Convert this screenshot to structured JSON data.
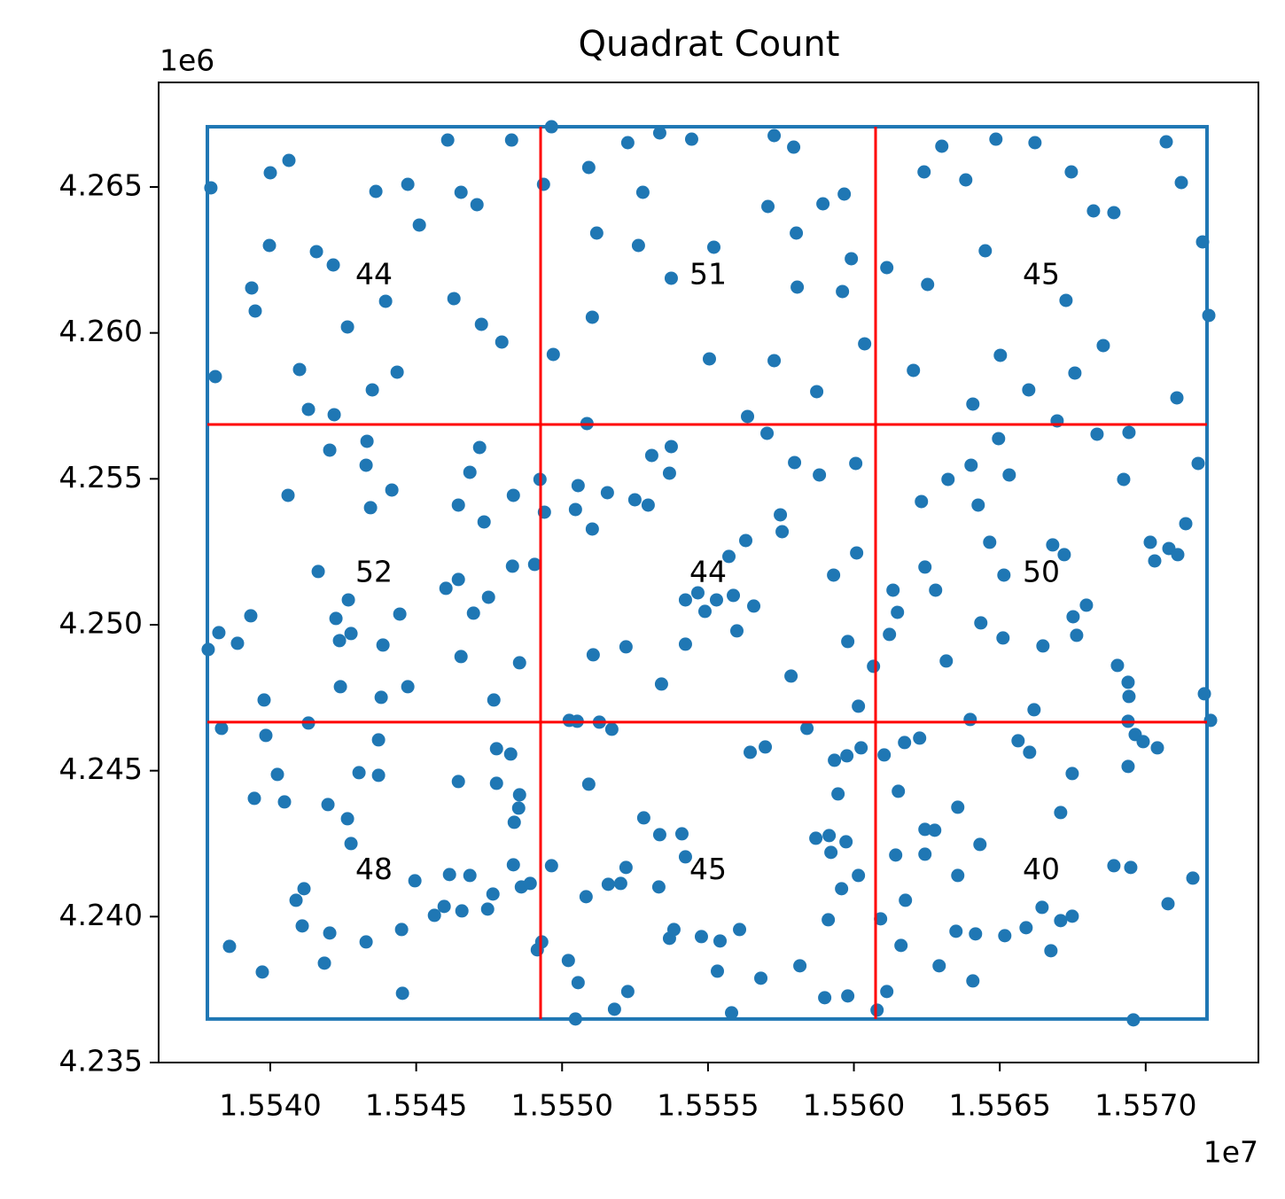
{
  "chart_data": {
    "type": "scatter",
    "title": "Quadrat Count",
    "color": "#1f77b4",
    "xlim": [
      15536173,
      15573863
    ],
    "ylim": [
      4235000,
      4268583
    ],
    "xticks": [
      {
        "value": 15540000,
        "label": "1.5540"
      },
      {
        "value": 15545000,
        "label": "1.5545"
      },
      {
        "value": 15550000,
        "label": "1.5550"
      },
      {
        "value": 15555000,
        "label": "1.5555"
      },
      {
        "value": 15560000,
        "label": "1.5560"
      },
      {
        "value": 15565000,
        "label": "1.5565"
      },
      {
        "value": 15570000,
        "label": "1.5570"
      }
    ],
    "yticks": [
      {
        "value": 4235000,
        "label": "4.235"
      },
      {
        "value": 4240000,
        "label": "4.240"
      },
      {
        "value": 4245000,
        "label": "4.245"
      },
      {
        "value": 4250000,
        "label": "4.250"
      },
      {
        "value": 4255000,
        "label": "4.255"
      },
      {
        "value": 4260000,
        "label": "4.260"
      },
      {
        "value": 4265000,
        "label": "4.265"
      }
    ],
    "x_offset": "1e7",
    "y_offset": "1e6",
    "boundary": {
      "x": [
        15537844,
        15572101
      ],
      "y": [
        4236492,
        4267064
      ],
      "color": "#1f77b4"
    },
    "quadrat_lines": {
      "x": [
        15549263,
        15560743
      ],
      "y": [
        4256863,
        4246662
      ],
      "color": "#ff0000"
    },
    "quadrat_counts": [
      [
        44,
        51,
        45
      ],
      [
        52,
        44,
        50
      ],
      [
        48,
        45,
        40
      ]
    ],
    "x": [
      15537963,
      15538115,
      15537872,
      15540000,
      15540638,
      15539970,
      15539362,
      15539483,
      15541003,
      15541581,
      15542158,
      15542645,
      15541307,
      15542189,
      15542037,
      15543314,
      15543496,
      15543618,
      15544712,
      15545107,
      15543952,
      15544347,
      15546080,
      15546536,
      15547083,
      15546293,
      15547235,
      15547934,
      15548269,
      15549363,
      15549637,
      15549698,
      15550914,
      15551187,
      15551035,
      15552251,
      15552768,
      15552616,
      15553346,
      15554440,
      15553741,
      15555200,
      15555048,
      15557267,
      15557936,
      15557054,
      15558027,
      15558939,
      15559669,
      15559912,
      15558058,
      15559608,
      15560368,
      15557267,
      15558726,
      15563013,
      15562405,
      15563834,
      15564867,
      15566205,
      15567451,
      15568211,
      15568910,
      15570704,
      15571221,
      15571950,
      15572163,
      15564502,
      15561128,
      15562526,
      15567269,
      15568546,
      15565019,
      15562040,
      15565992,
      15567573,
      15571069,
      15568333,
      15569427,
      15564958,
      15564077,
      15566965,
      15540608,
      15543283,
      15543435,
      15544165,
      15541642,
      15542675,
      15542250,
      15542371,
      15542766,
      15543861,
      15544438,
      15539331,
      15538237,
      15538875,
      15542402,
      15543800,
      15544712,
      15539787,
      15547174,
      15546840,
      15546445,
      15547326,
      15546019,
      15546445,
      15547478,
      15546962,
      15546536,
      15548299,
      15548330,
      15548542,
      15547661,
      15549059,
      15549242,
      15549394,
      15550458,
      15550549,
      15551035,
      15551552,
      15550853,
      15553072,
      15552494,
      15552950,
      15553680,
      15553741,
      15551066,
      15552190,
      15553406,
      15554227,
      15554653,
      15554227,
      15555291,
      15554896,
      15555869,
      15555717,
      15556294,
      15556568,
      15555990,
      15557480,
      15557541,
      15556355,
      15557024,
      15557966,
      15558818,
      15560064,
      15559304,
      15560094,
      15557845,
      15559790,
      15560672,
      15560155,
      15561341,
      15561493,
      15561219,
      15562314,
      15562435,
      15562800,
      15563165,
      15563226,
      15564016,
      15564259,
      15564654,
      15565141,
      15565323,
      15564350,
      15565110,
      15566478,
      15566813,
      15567208,
      15567968,
      15567512,
      15567634,
      15569245,
      15570157,
      15570309,
      15570795,
      15571099,
      15571373,
      15571798,
      15569032,
      15569397,
      15569427,
      15572011,
      15538328,
      15538602,
      15539726,
      15539848,
      15540243,
      15539453,
      15540486,
      15541307,
      15541976,
      15542645,
      15542766,
      15543040,
      15543709,
      15543709,
      15540882,
      15541155,
      15541094,
      15542037,
      15541854,
      15543283,
      15544499,
      15544530,
      15544955,
      15545624,
      15546141,
      15545958,
      15546566,
      15546840,
      15547448,
      15547630,
      15546445,
      15547752,
      15548238,
      15547752,
      15548512,
      15548360,
      15548542,
      15548330,
      15548603,
      15548907,
      15549150,
      15549302,
      15549637,
      15550245,
      15550518,
      15550914,
      15550822,
      15550214,
      15550549,
      15550458,
      15551795,
      15552251,
      15551582,
      15552008,
      15552190,
      15551278,
      15551704,
      15552798,
      15553346,
      15553315,
      15554106,
      15554227,
      15553680,
      15553832,
      15554774,
      15555413,
      15555322,
      15556082,
      15555808,
      15556811,
      15556446,
      15556963,
      15558149,
      15558392,
      15558696,
      15559152,
      15559213,
      15559334,
      15559456,
      15559760,
      15559730,
      15559578,
      15559122,
      15559000,
      15559790,
      15560155,
      15560246,
      15560794,
      15560915,
      15561128,
      15561037,
      15561432,
      15561523,
      15561614,
      15561766,
      15561736,
      15562253,
      15562435,
      15562770,
      15562435,
      15562922,
      15563499,
      15563560,
      15563560,
      15564168,
      15564077,
      15563986,
      15564320,
      15565171,
      15565627,
      15566022,
      15566174,
      15565901,
      15566448,
      15566752,
      15567086,
      15567482,
      15567086,
      15567482,
      15568910,
      15569488,
      15569579,
      15569397,
      15569640,
      15569914,
      15570400,
      15569397,
      15570765,
      15571616,
      15572224
    ],
    "y": [
      4264970,
      4258503,
      4249152,
      4265486,
      4265911,
      4262996,
      4261539,
      4260750,
      4258746,
      4262784,
      4262328,
      4260203,
      4257380,
      4257197,
      4255983,
      4256287,
      4258048,
      4264848,
      4265091,
      4263695,
      4261084,
      4258655,
      4266609,
      4264818,
      4264393,
      4261175,
      4260294,
      4259687,
      4266609,
      4265091,
      4267064,
      4259262,
      4265668,
      4263421,
      4260537,
      4266518,
      4264818,
      4262996,
      4266852,
      4266639,
      4261873,
      4262936,
      4259110,
      4266761,
      4266366,
      4264332,
      4263421,
      4264423,
      4264757,
      4262541,
      4261569,
      4261418,
      4259626,
      4259049,
      4257987,
      4266397,
      4265516,
      4265243,
      4266639,
      4266518,
      4265516,
      4264180,
      4264120,
      4266548,
      4265152,
      4263118,
      4260598,
      4262814,
      4262237,
      4261660,
      4261114,
      4259566,
      4259232,
      4258715,
      4258048,
      4258624,
      4257774,
      4256530,
      4256590,
      4256378,
      4257562,
      4256985,
      4254435,
      4255467,
      4254010,
      4254617,
      4251824,
      4250852,
      4250215,
      4249456,
      4249699,
      4249304,
      4250366,
      4250306,
      4249729,
      4249365,
      4247877,
      4247513,
      4247877,
      4247422,
      4256074,
      4255224,
      4254101,
      4253524,
      4251247,
      4251551,
      4250943,
      4250397,
      4248909,
      4252006,
      4254435,
      4248697,
      4247422,
      4252067,
      4254981,
      4253858,
      4253949,
      4254769,
      4253281,
      4254526,
      4256894,
      4255801,
      4254283,
      4254101,
      4255194,
      4256105,
      4248970,
      4249243,
      4247968,
      4249334,
      4251095,
      4250852,
      4250852,
      4250458,
      4251004,
      4252340,
      4252886,
      4250640,
      4249790,
      4253767,
      4253190,
      4257137,
      4256560,
      4255558,
      4255133,
      4255528,
      4251702,
      4252461,
      4248241,
      4249425,
      4248575,
      4247209,
      4251186,
      4250427,
      4249668,
      4254222,
      4251976,
      4251186,
      4248757,
      4254981,
      4255467,
      4254101,
      4252826,
      4251702,
      4255133,
      4250063,
      4249547,
      4249274,
      4252735,
      4252401,
      4250670,
      4250275,
      4249638,
      4254981,
      4252826,
      4252188,
      4252613,
      4252401,
      4253463,
      4255528,
      4248606,
      4248029,
      4247543,
      4247634,
      4246450,
      4238981,
      4238101,
      4246207,
      4244871,
      4244052,
      4243930,
      4246632,
      4243839,
      4243353,
      4242503,
      4244932,
      4244841,
      4246055,
      4240560,
      4240955,
      4239680,
      4239437,
      4238405,
      4239133,
      4239558,
      4237372,
      4241228,
      4240044,
      4241441,
      4240348,
      4240195,
      4241410,
      4240257,
      4240773,
      4244628,
      4244568,
      4245570,
      4245752,
      4243718,
      4243232,
      4244173,
      4241775,
      4241016,
      4241137,
      4238860,
      4239133,
      4241744,
      4246723,
      4246693,
      4244537,
      4240682,
      4238496,
      4237737,
      4236492,
      4236826,
      4237433,
      4241107,
      4241137,
      4241684,
      4246663,
      4246420,
      4243384,
      4242807,
      4241016,
      4242837,
      4242048,
      4239255,
      4239558,
      4239315,
      4239164,
      4238131,
      4239558,
      4236704,
      4237889,
      4245630,
      4245812,
      4238314,
      4246450,
      4242685,
      4242776,
      4242200,
      4245357,
      4244203,
      4245509,
      4242564,
      4240955,
      4239892,
      4237221,
      4237281,
      4241410,
      4245782,
      4236796,
      4239923,
      4237433,
      4245539,
      4242109,
      4244294,
      4239012,
      4240560,
      4245964,
      4246116,
      4242989,
      4242959,
      4242139,
      4238314,
      4239498,
      4243748,
      4241410,
      4239407,
      4237797,
      4246754,
      4242473,
      4239346,
      4246025,
      4245630,
      4247088,
      4239619,
      4240317,
      4238830,
      4239862,
      4240014,
      4243566,
      4244902,
      4241744,
      4241684,
      4236462,
      4245145,
      4246238,
      4245995,
      4245782,
      4246693,
      4240439,
      4241319,
      4246723
    ]
  }
}
